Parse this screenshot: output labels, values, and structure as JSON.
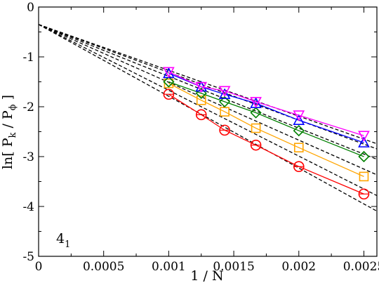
{
  "chart_data": {
    "type": "scatter",
    "xlabel": "1 / N",
    "ylabel": {
      "prefix": "ln[ P",
      "sub1": "k",
      "middle": " / P",
      "sub2": "ϕ",
      "suffix": " ]"
    },
    "annotation": {
      "base": "4",
      "sub": "1"
    },
    "xlim": [
      0,
      0.0026
    ],
    "ylim": [
      -5,
      0
    ],
    "xticks": [
      0,
      0.0005,
      0.001,
      0.0015,
      0.002,
      0.0025
    ],
    "xtick_labels": [
      "0",
      "0.0005",
      "0.001",
      "0.0015",
      "0.002",
      "0.0025"
    ],
    "yticks": [
      0,
      -1,
      -2,
      -3,
      -4,
      -5
    ],
    "ytick_labels": [
      "0",
      "-1",
      "-2",
      "-3",
      "-4",
      "-5"
    ],
    "grid": false,
    "legend": "none",
    "x": [
      0.001,
      0.00125,
      0.00143,
      0.00167,
      0.002,
      0.0025
    ],
    "series": [
      {
        "color": "#ff0000",
        "marker": "circle",
        "y": [
          -1.75,
          -2.16,
          -2.47,
          -2.77,
          -3.2,
          -3.75
        ]
      },
      {
        "color": "#ffa500",
        "marker": "square",
        "y": [
          -1.53,
          -1.87,
          -2.1,
          -2.43,
          -2.82,
          -3.4
        ]
      },
      {
        "color": "#008000",
        "marker": "diamond",
        "y": [
          -1.5,
          -1.73,
          -1.9,
          -2.12,
          -2.48,
          -3.0
        ]
      },
      {
        "color": "#0000ff",
        "marker": "triangle-up",
        "y": [
          -1.33,
          -1.6,
          -1.75,
          -1.93,
          -2.27,
          -2.72
        ]
      },
      {
        "color": "#ff00ff",
        "marker": "triangle-down",
        "y": [
          -1.3,
          -1.6,
          -1.68,
          -1.9,
          -2.17,
          -2.58
        ]
      }
    ],
    "fit_lines": [
      {
        "color": "#000000",
        "style": "dashed",
        "y0": -0.35,
        "y_at_0.0025": -3.95
      },
      {
        "color": "#000000",
        "style": "dashed",
        "y0": -0.35,
        "y_at_0.0025": -3.65
      },
      {
        "color": "#000000",
        "style": "dashed",
        "y0": -0.35,
        "y_at_0.0025": -3.25
      },
      {
        "color": "#000000",
        "style": "dashed",
        "y0": -0.35,
        "y_at_0.0025": -2.95
      },
      {
        "color": "#000000",
        "style": "dashed",
        "y0": -0.35,
        "y_at_0.0025": -2.75
      },
      {
        "color": "#000000",
        "style": "dashed",
        "y0": -0.35,
        "y_at_0.0025": -2.65
      }
    ]
  }
}
